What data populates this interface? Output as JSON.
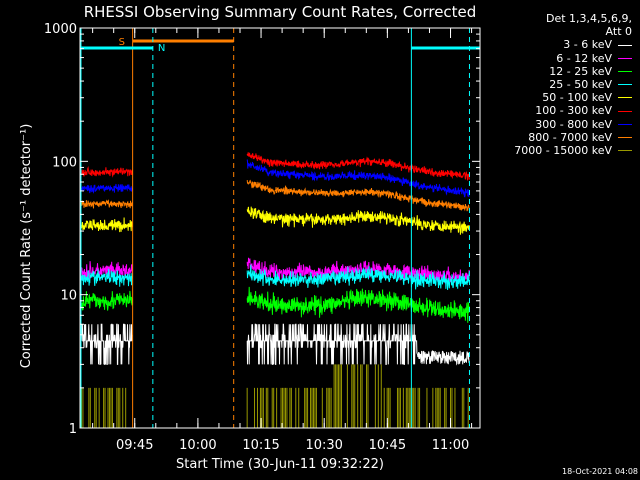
{
  "chart_data": {
    "type": "line",
    "title": "RHESSI Observing Summary Count Rates, Corrected",
    "xlabel": "Start Time (30-Jun-11 09:32:22)",
    "ylabel": "Corrected Count Rate (s⁻¹ detector⁻¹)",
    "yscale": "log",
    "ylim": [
      1,
      1000
    ],
    "xlim_minutes": [
      0,
      95
    ],
    "x_ticks": [
      {
        "m": 13,
        "label": "09:45"
      },
      {
        "m": 28,
        "label": "10:00"
      },
      {
        "m": 43,
        "label": "10:15"
      },
      {
        "m": 58,
        "label": "10:30"
      },
      {
        "m": 73,
        "label": "10:45"
      },
      {
        "m": 88,
        "label": "11:00"
      }
    ],
    "y_ticks": [
      {
        "v": 1,
        "label": "1"
      },
      {
        "v": 10,
        "label": "10"
      },
      {
        "v": 100,
        "label": "100"
      },
      {
        "v": 1000,
        "label": "1000"
      }
    ],
    "legend_header": [
      "Det 1,3,4,5,6,9,",
      "Att 0"
    ],
    "segments": [
      [
        0,
        12.5
      ],
      [
        39.7,
        92.5
      ]
    ],
    "series": [
      {
        "name": "3 - 6 keV",
        "color": "#ffffff",
        "base1": 4.5,
        "base2": 4.5,
        "bump": 0,
        "end": 3.3,
        "noise": 0.17,
        "jump": true
      },
      {
        "name": "6 - 12 keV",
        "color": "#ff00ff",
        "base1": 15,
        "base2": 15,
        "bump": 1.5,
        "end": 13.5,
        "noise": 0.05
      },
      {
        "name": "12 - 25 keV",
        "color": "#00ff00",
        "base1": 9,
        "base2": 8.5,
        "bump": 1.5,
        "end": 7.5,
        "noise": 0.06
      },
      {
        "name": "25 - 50 keV",
        "color": "#00ffff",
        "base1": 13.5,
        "base2": 13,
        "bump": 1.5,
        "end": 12.5,
        "noise": 0.05
      },
      {
        "name": "50 - 100 keV",
        "color": "#ffff00",
        "base1": 33,
        "base2": 38,
        "bump": 4,
        "end": 32,
        "noise": 0.04
      },
      {
        "name": "100 - 300 keV",
        "color": "#ff0000",
        "base1": 83,
        "base2": 100,
        "bump": 12,
        "end": 78,
        "noise": 0.025
      },
      {
        "name": "300 - 800 keV",
        "color": "#0000ff",
        "base1": 63,
        "base2": 85,
        "bump": 8,
        "end": 58,
        "noise": 0.025
      },
      {
        "name": "800 - 7000 keV",
        "color": "#ff7f00",
        "base1": 48,
        "base2": 63,
        "bump": 6,
        "end": 45,
        "noise": 0.025
      },
      {
        "name": "7000 - 15000 keV",
        "color": "#999900",
        "base1": 1.5,
        "base2": 1.5,
        "bump": 0,
        "end": 1.5,
        "noise": 0,
        "bars": true
      }
    ],
    "markers": {
      "saa_label": "S",
      "night_label": "N",
      "saa_span": [
        12.5,
        36.5
      ],
      "saa_end_dash": 36.5,
      "night_spans": [
        [
          -3,
          17.3
        ],
        [
          78.7,
          95
        ]
      ],
      "night_dashes": [
        17.3,
        92.5
      ],
      "orange_solid": 12.5,
      "cyan_solid": 78.7
    }
  },
  "legend": {
    "items": [
      {
        "label": "3 - 6 keV",
        "color": "#ffffff"
      },
      {
        "label": "6 - 12 keV",
        "color": "#ff00ff"
      },
      {
        "label": "12 - 25 keV",
        "color": "#00ff00"
      },
      {
        "label": "25 - 50 keV",
        "color": "#00ffff"
      },
      {
        "label": "50 - 100 keV",
        "color": "#ffff00"
      },
      {
        "label": "100 - 300 keV",
        "color": "#ff0000"
      },
      {
        "label": "300 - 800 keV",
        "color": "#0000ff"
      },
      {
        "label": "800 - 7000 keV",
        "color": "#ff7f00"
      },
      {
        "label": "7000 - 15000 keV",
        "color": "#999900"
      }
    ]
  },
  "timestamp": "18-Oct-2021 04:08"
}
